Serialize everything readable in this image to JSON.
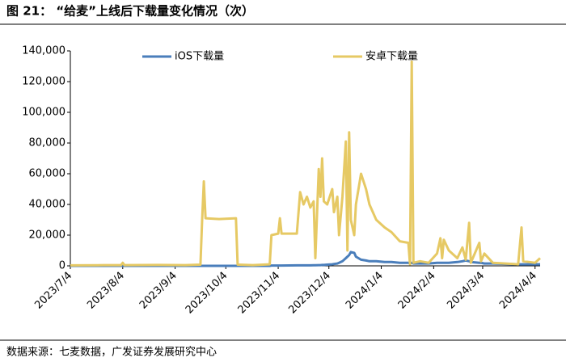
{
  "chart_data": {
    "type": "line",
    "title": "图 21： “给麦”上线后下载量变化情况（次）",
    "source": "数据来源：七麦数据，广发证券发展研究中心",
    "x": [
      "2023/7/4",
      "2023/7/20",
      "2023/8/3",
      "2023/8/4",
      "2023/8/5",
      "2023/8/25",
      "2023/9/10",
      "2023/9/19",
      "2023/9/20",
      "2023/9/21",
      "2023/9/22",
      "2023/9/30",
      "2023/10/10",
      "2023/10/11",
      "2023/10/20",
      "2023/10/30",
      "2023/10/31",
      "2023/11/4",
      "2023/11/5",
      "2023/11/6",
      "2023/11/15",
      "2023/11/17",
      "2023/11/19",
      "2023/11/21",
      "2023/11/23",
      "2023/11/25",
      "2023/11/26",
      "2023/11/28",
      "2023/11/29",
      "2023/11/30",
      "2023/12/1",
      "2023/12/3",
      "2023/12/6",
      "2023/12/7",
      "2023/12/9",
      "2023/12/10",
      "2023/12/12",
      "2023/12/14",
      "2023/12/15",
      "2023/12/16",
      "2023/12/17",
      "2023/12/19",
      "2023/12/20",
      "2023/12/23",
      "2023/12/26",
      "2023/12/28",
      "2024/1/1",
      "2024/1/6",
      "2024/1/10",
      "2024/1/15",
      "2024/1/20",
      "2024/1/21",
      "2024/1/22",
      "2024/1/23",
      "2024/1/27",
      "2024/2/1",
      "2024/2/6",
      "2024/2/8",
      "2024/2/9",
      "2024/2/10",
      "2024/2/13",
      "2024/2/18",
      "2024/2/21",
      "2024/2/23",
      "2024/2/25",
      "2024/2/26",
      "2024/3/2",
      "2024/3/3",
      "2024/3/5",
      "2024/3/10",
      "2024/3/25",
      "2024/3/27",
      "2024/3/28",
      "2024/4/4",
      "2024/4/7"
    ],
    "series": [
      {
        "name": "iOS下载量",
        "color": "#4a7ebb",
        "values": [
          0,
          0,
          0,
          0,
          0,
          0,
          0,
          0,
          0,
          0,
          0,
          0,
          0,
          0,
          0,
          0,
          200,
          200,
          200,
          200,
          300,
          300,
          300,
          300,
          300,
          400,
          400,
          500,
          500,
          600,
          600,
          800,
          1000,
          1200,
          1500,
          2000,
          3000,
          5000,
          6000,
          7000,
          9000,
          8500,
          6000,
          4000,
          3500,
          3000,
          3000,
          2500,
          2500,
          2000,
          2000,
          1500,
          2000,
          1500,
          1500,
          1500,
          2000,
          2000,
          2000,
          2000,
          2000,
          2500,
          3000,
          3500,
          3000,
          2500,
          2000,
          2000,
          1500,
          1500,
          1000,
          1000,
          1000,
          1000,
          1000
        ]
      },
      {
        "name": "安卓下载量",
        "color": "#e6c964",
        "values": [
          300,
          400,
          500,
          2000,
          500,
          600,
          500,
          800,
          30000,
          55000,
          31000,
          30500,
          31000,
          800,
          500,
          1000,
          20000,
          21000,
          31000,
          21000,
          21000,
          48000,
          40000,
          45000,
          38000,
          42000,
          5000,
          63000,
          45000,
          70000,
          42000,
          40000,
          50000,
          35000,
          45000,
          20000,
          45000,
          81000,
          10000,
          87000,
          30000,
          20000,
          40000,
          60000,
          50000,
          40000,
          30000,
          25000,
          22000,
          16000,
          15000,
          1000,
          133000,
          2000,
          3000,
          2000,
          8000,
          18000,
          5000,
          17000,
          10000,
          5000,
          12000,
          4000,
          28000,
          2000,
          15000,
          3000,
          8000,
          2000,
          1000,
          25000,
          3000,
          2000,
          5000
        ]
      }
    ],
    "xlim": [
      "2023/7/4",
      "2024/4/7"
    ],
    "xticks": [
      "2023/7/4",
      "2023/8/4",
      "2023/9/4",
      "2023/10/4",
      "2023/11/4",
      "2023/12/4",
      "2024/1/4",
      "2024/2/4",
      "2024/3/4",
      "2024/4/4"
    ],
    "ylim": [
      0,
      140000
    ],
    "yticks": [
      0,
      {
        "value": 20000,
        "label": "20,000"
      },
      {
        "value": 40000,
        "label": "40,000"
      },
      {
        "value": 60000,
        "label": "60,000"
      },
      {
        "value": 80000,
        "label": "80,000"
      },
      {
        "value": 100000,
        "label": "100,000"
      },
      {
        "value": 120000,
        "label": "120,000"
      },
      {
        "value": 140000,
        "label": "140,000"
      }
    ],
    "legend": "top"
  }
}
